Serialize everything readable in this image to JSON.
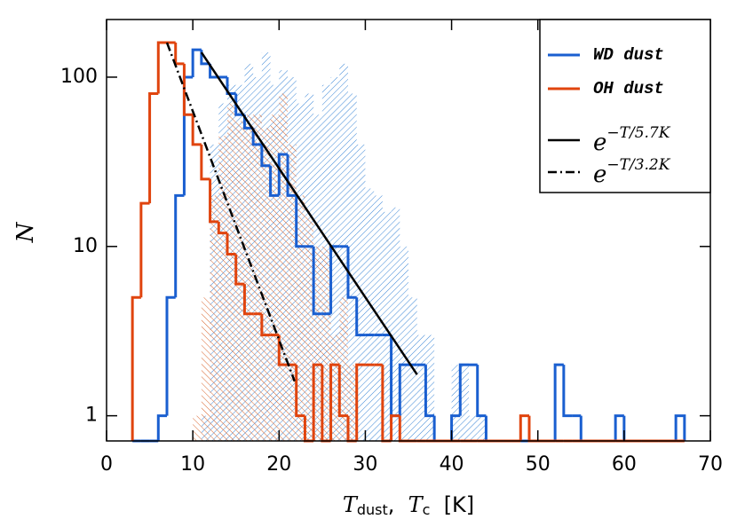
{
  "chart_data": {
    "type": "histogram",
    "xlabel": [
      "T",
      "dust",
      ",  ",
      "T",
      "c",
      "  [K]"
    ],
    "ylabel": "N",
    "bins": [
      3,
      4,
      5,
      6,
      7,
      8,
      9,
      10,
      11,
      12,
      13,
      14,
      15,
      16,
      17,
      18,
      19,
      20,
      21,
      22,
      23,
      24,
      25,
      26,
      27,
      28,
      29,
      30,
      31,
      32,
      33,
      34,
      35,
      36,
      37,
      38,
      39,
      40,
      41,
      42,
      43,
      44,
      45,
      46,
      47,
      48,
      49,
      50,
      51,
      52,
      53,
      54,
      55,
      56,
      57,
      58,
      59,
      60,
      61,
      62,
      63,
      64,
      65,
      66,
      67
    ],
    "series": [
      {
        "name": "WD dust",
        "color": "#1a5fd0",
        "values": [
          0,
          0,
          0,
          1,
          5,
          20,
          100,
          145,
          120,
          100,
          100,
          80,
          60,
          50,
          40,
          30,
          20,
          35,
          20,
          10,
          10,
          4,
          4,
          10,
          10,
          5,
          3,
          3,
          3,
          3,
          1,
          2,
          2,
          2,
          1,
          0,
          0,
          1,
          2,
          2,
          1,
          0,
          0,
          0,
          0,
          0,
          0,
          0,
          0,
          2,
          1,
          1,
          0,
          0,
          0,
          0,
          1,
          0,
          0,
          0,
          0,
          0,
          0,
          1
        ]
      },
      {
        "name": "OH dust",
        "color": "#e0440e",
        "values": [
          5,
          18,
          80,
          160,
          160,
          120,
          60,
          40,
          25,
          14,
          12,
          9,
          6,
          4,
          4,
          3,
          3,
          2,
          2,
          1,
          0,
          2,
          0,
          2,
          1,
          0,
          2,
          2,
          2,
          0,
          1,
          0,
          0,
          0,
          0,
          0,
          0,
          0,
          0,
          0,
          0,
          0,
          0,
          0,
          0,
          1,
          0,
          0,
          0,
          0,
          0,
          0,
          0,
          0,
          0,
          0,
          0,
          0,
          0,
          0,
          0,
          0,
          0,
          0
        ]
      }
    ],
    "hatched_series": [
      {
        "color": "#3b86d6",
        "values": [
          0,
          0,
          0,
          0,
          0,
          0,
          0,
          0,
          1,
          40,
          70,
          90,
          90,
          120,
          100,
          140,
          90,
          110,
          100,
          70,
          80,
          60,
          90,
          100,
          120,
          80,
          40,
          22,
          20,
          16,
          17,
          10,
          5,
          3,
          3,
          0,
          0,
          2,
          2,
          1,
          1,
          0,
          0,
          0,
          0,
          0,
          0,
          0,
          0,
          0,
          0,
          0,
          0,
          0,
          0,
          0,
          0,
          0,
          0,
          0,
          0,
          0,
          0,
          0
        ]
      },
      {
        "color": "#d9652e",
        "values": [
          0,
          0,
          0,
          0,
          0,
          0,
          0,
          1,
          5,
          20,
          45,
          70,
          55,
          60,
          60,
          50,
          60,
          80,
          40,
          20,
          15,
          10,
          10,
          3,
          5,
          2,
          0,
          0,
          0,
          0,
          0,
          0,
          0,
          0,
          0,
          0,
          0,
          0,
          0,
          0,
          0,
          0,
          0,
          0,
          0,
          0,
          0,
          0,
          0,
          0,
          0,
          0,
          0,
          0,
          0,
          0,
          0,
          0,
          0,
          0,
          0,
          0,
          0,
          0
        ]
      }
    ],
    "fits": [
      {
        "name": "e",
        "exponent": "−T/5.7K",
        "style": "solid",
        "color": "#000000",
        "x": [
          11,
          36
        ],
        "values": [
          140,
          1.75
        ]
      },
      {
        "name": "e",
        "exponent": "−T/3.2K",
        "style": "dashdot",
        "color": "#000000",
        "x": [
          7,
          21.8
        ],
        "values": [
          160,
          1.6
        ]
      }
    ],
    "xlim": [
      0,
      70
    ],
    "xticks": [
      0,
      10,
      20,
      30,
      40,
      50,
      60,
      70
    ],
    "ylim": [
      0.71,
      219
    ],
    "yticks": [
      1,
      10,
      100
    ],
    "log_y": true,
    "legend": "upper right"
  }
}
